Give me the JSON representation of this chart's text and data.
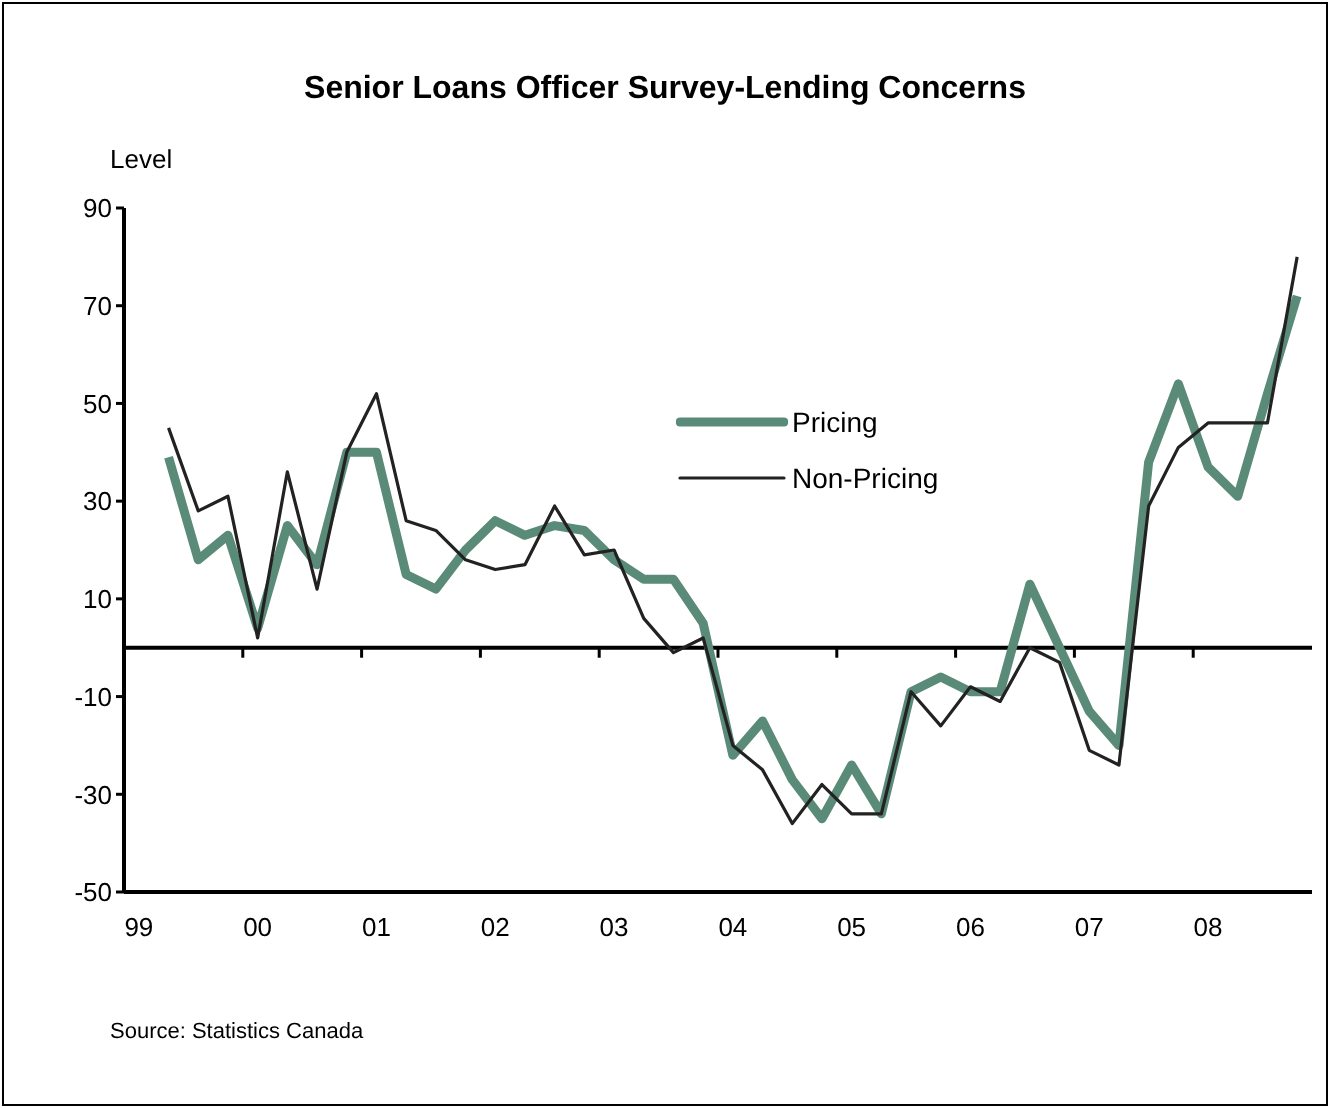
{
  "chart_data": {
    "type": "line",
    "title": "Senior Loans Officer Survey-Lending Concerns",
    "ylabel": "Level",
    "categories": [
      "99",
      null,
      null,
      null,
      "00",
      null,
      null,
      null,
      "01",
      null,
      null,
      null,
      "02",
      null,
      null,
      null,
      "03",
      null,
      null,
      null,
      "04",
      null,
      null,
      null,
      "05",
      null,
      null,
      null,
      "06",
      null,
      null,
      null,
      "07",
      null,
      null,
      null,
      "08",
      null,
      null,
      null
    ],
    "series": [
      {
        "name": "Pricing",
        "color": "#5a8a78",
        "values": [
          null,
          39,
          18,
          23,
          4,
          25,
          17,
          40,
          40,
          15,
          12,
          20,
          26,
          23,
          25,
          24,
          18,
          14,
          14,
          5,
          -22,
          -15,
          -27,
          -35,
          -24,
          -34,
          -9,
          -6,
          -9,
          -9,
          13,
          0,
          -13,
          -20,
          38,
          54,
          37,
          31,
          52,
          72
        ]
      },
      {
        "name": "Non-Pricing",
        "color": "#222222",
        "values": [
          null,
          45,
          28,
          31,
          2,
          36,
          12,
          40,
          52,
          26,
          24,
          18,
          16,
          17,
          29,
          19,
          20,
          6,
          -1,
          2,
          -20,
          -25,
          -36,
          -28,
          -34,
          -34,
          -9,
          -16,
          -8,
          -11,
          0,
          -3,
          -21,
          -24,
          29,
          41,
          46,
          46,
          46,
          80
        ]
      }
    ],
    "ylim": [
      -50,
      90
    ],
    "yticks": [
      -50,
      -30,
      -10,
      10,
      30,
      50,
      70,
      90
    ],
    "legend": "right",
    "marker": "none",
    "line_style": "solid",
    "annotations": [
      "Source: Statistics Canada"
    ]
  }
}
